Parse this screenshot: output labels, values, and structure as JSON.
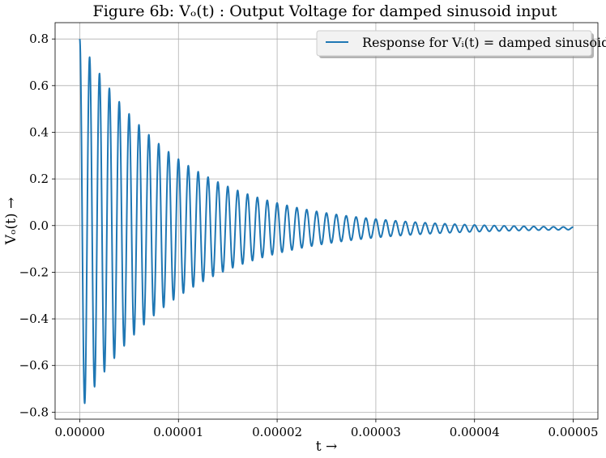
{
  "chart_data": {
    "type": "line",
    "title": "Figure 6b: Vₒ(t) : Output Voltage for damped sinusoid input",
    "xlabel": "t →",
    "ylabel": "Vₒ(t) →",
    "xlim": [
      -2.5e-06,
      5.25e-05
    ],
    "ylim": [
      -0.83,
      0.87
    ],
    "grid": true,
    "legend_position": "top-right",
    "xticks": [
      0,
      1e-05,
      2e-05,
      3e-05,
      4e-05,
      5e-05
    ],
    "xtick_labels": [
      "0.00000",
      "0.00001",
      "0.00002",
      "0.00003",
      "0.00004",
      "0.00005"
    ],
    "yticks": [
      -0.8,
      -0.6,
      -0.4,
      -0.2,
      0.0,
      0.2,
      0.4,
      0.6,
      0.8
    ],
    "ytick_labels": [
      "−0.8",
      "−0.6",
      "−0.4",
      "−0.2",
      "0.0",
      "0.2",
      "0.4",
      "0.6",
      "0.8"
    ],
    "series": [
      {
        "name": "Response for Vᵢ(t) = damped sinusoid",
        "color": "#1f77b4",
        "amplitude": 0.8,
        "decay_rate": 100000,
        "frequency": 1000000,
        "offset_amplitude": 0.012,
        "offset_decay_rate": 150000,
        "x_start": 0,
        "x_end": 5e-05,
        "x_step": 2e-08
      }
    ]
  }
}
